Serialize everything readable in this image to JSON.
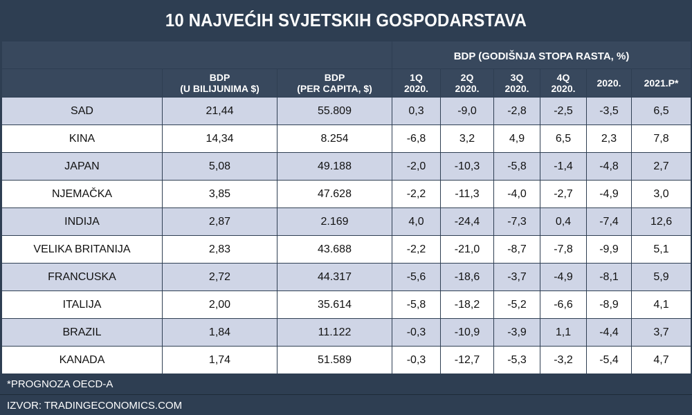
{
  "title": "10 NAJVEĆIH SVJETSKIH GOSPODARSTAVA",
  "chart_data": {
    "type": "table",
    "group_header": "BDP (GODIŠNJA STOPA RASTA, %)",
    "columns": [
      {
        "line1": "",
        "line2": ""
      },
      {
        "line1": "BDP",
        "line2": "(U BILIJUNIMA $)"
      },
      {
        "line1": "BDP",
        "line2": "(PER CAPITA, $)"
      },
      {
        "line1": "1Q",
        "line2": "2020."
      },
      {
        "line1": "2Q",
        "line2": "2020."
      },
      {
        "line1": "3Q",
        "line2": "2020."
      },
      {
        "line1": "4Q",
        "line2": "2020."
      },
      {
        "line1": "2020.",
        "line2": ""
      },
      {
        "line1": "2021.P*",
        "line2": ""
      }
    ],
    "rows": [
      [
        "SAD",
        "21,44",
        "55.809",
        "0,3",
        "-9,0",
        "-2,8",
        "-2,5",
        "-3,5",
        "6,5"
      ],
      [
        "KINA",
        "14,34",
        "8.254",
        "-6,8",
        "3,2",
        "4,9",
        "6,5",
        "2,3",
        "7,8"
      ],
      [
        "JAPAN",
        "5,08",
        "49.188",
        "-2,0",
        "-10,3",
        "-5,8",
        "-1,4",
        "-4,8",
        "2,7"
      ],
      [
        "NJEMAČKA",
        "3,85",
        "47.628",
        "-2,2",
        "-11,3",
        "-4,0",
        "-2,7",
        "-4,9",
        "3,0"
      ],
      [
        "INDIJA",
        "2,87",
        "2.169",
        "4,0",
        "-24,4",
        "-7,3",
        "0,4",
        "-7,4",
        "12,6"
      ],
      [
        "VELIKA BRITANIJA",
        "2,83",
        "43.688",
        "-2,2",
        "-21,0",
        "-8,7",
        "-7,8",
        "-9,9",
        "5,1"
      ],
      [
        "FRANCUSKA",
        "2,72",
        "44.317",
        "-5,6",
        "-18,6",
        "-3,7",
        "-4,9",
        "-8,1",
        "5,9"
      ],
      [
        "ITALIJA",
        "2,00",
        "35.614",
        "-5,8",
        "-18,2",
        "-5,2",
        "-6,6",
        "-8,9",
        "4,1"
      ],
      [
        "BRAZIL",
        "1,84",
        "11.122",
        "-0,3",
        "-10,9",
        "-3,9",
        "1,1",
        "-4,4",
        "3,7"
      ],
      [
        "KANADA",
        "1,74",
        "51.589",
        "-0,3",
        "-12,7",
        "-5,3",
        "-3,2",
        "-5,4",
        "4,7"
      ]
    ]
  },
  "footer": {
    "note": "*PROGNOZA OECD-A",
    "source": "IZVOR: TRADINGECONOMICS.COM"
  },
  "colors": {
    "background": "#2e3e52",
    "header": "#38485d",
    "row_shaded": "#cfd5e6",
    "row_plain": "#ffffff"
  }
}
